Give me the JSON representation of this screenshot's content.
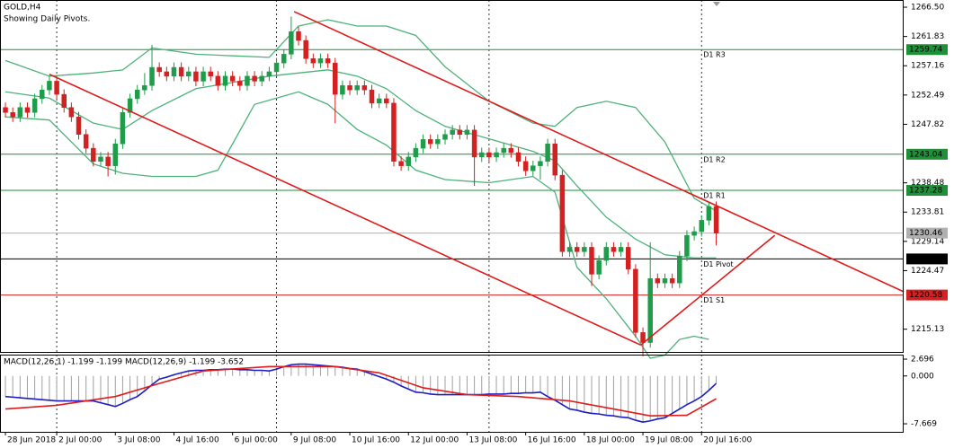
{
  "chart_data": {
    "type": "candlestick",
    "title": "GOLD,H4",
    "subtitle": "Showing Daily Pivots.",
    "up_color": "#1f9c4a",
    "down_color": "#d42020",
    "xlim": [
      -0.74,
      122.58
    ],
    "ylim": [
      1211.5,
      1267.65
    ],
    "yticks": [
      {
        "value": 1266.5,
        "label": "1266.50"
      },
      1261.83,
      1257.16,
      1252.49,
      1247.82,
      1238.48,
      1233.81,
      1229.14,
      1224.47,
      1215.13
    ],
    "xticks": [
      {
        "value": 0,
        "label": "28 Jun 2018"
      },
      {
        "value": 7,
        "label": "2 Jul 00:00"
      },
      {
        "value": 15,
        "label": "3 Jul 08:00"
      },
      {
        "value": 23,
        "label": "4 Jul 16:00"
      },
      {
        "value": 31,
        "label": "6 Jul 00:00"
      },
      {
        "value": 39,
        "label": "9 Jul 08:00"
      },
      {
        "value": 47,
        "label": "10 Jul 16:00"
      },
      {
        "value": 55,
        "label": "12 Jul 00:00"
      },
      {
        "value": 63,
        "label": "13 Jul 08:00"
      },
      {
        "value": 71,
        "label": "16 Jul 16:00"
      },
      {
        "value": 79,
        "label": "18 Jul 00:00"
      },
      {
        "value": 87,
        "label": "19 Jul 08:00"
      },
      {
        "value": 95,
        "label": "20 Jul 16:00"
      }
    ],
    "vgrid": [
      7,
      37,
      66,
      95
    ],
    "candles": {
      "open": [
        1250.5,
        1249.7,
        1249.0,
        1250.5,
        1249.7,
        1251.9,
        1253.3,
        1254.7,
        1252.6,
        1250.5,
        1249.0,
        1246.2,
        1244.0,
        1241.9,
        1242.6,
        1241.2,
        1244.7,
        1249.7,
        1251.9,
        1253.3,
        1254.0,
        1256.9,
        1256.2,
        1255.5,
        1256.9,
        1255.5,
        1256.2,
        1254.7,
        1256.2,
        1255.5,
        1254.0,
        1255.5,
        1254.7,
        1254.0,
        1255.5,
        1254.7,
        1255.5,
        1256.2,
        1257.6,
        1259.0,
        1262.6,
        1261.2,
        1258.3,
        1257.6,
        1258.3,
        1257.6,
        1252.6,
        1254.0,
        1253.3,
        1254.0,
        1253.3,
        1251.2,
        1251.9,
        1251.2,
        1241.9,
        1241.2,
        1242.6,
        1244.0,
        1245.4,
        1244.7,
        1245.4,
        1246.2,
        1246.9,
        1246.2,
        1246.9,
        1242.6,
        1243.3,
        1242.6,
        1243.3,
        1244.0,
        1243.3,
        1241.9,
        1240.4,
        1241.2,
        1241.9,
        1244.7,
        1239.7,
        1227.5,
        1228.2,
        1227.5,
        1228.2,
        1223.9,
        1226.1,
        1228.2,
        1227.5,
        1228.2,
        1224.7,
        1214.6,
        1213.0,
        1223.2,
        1222.5,
        1223.2,
        1222.5,
        1226.8,
        1230.1,
        1230.7,
        1232.5,
        1234.7
      ],
      "high": [
        1251.3,
        1250.5,
        1251.3,
        1251.3,
        1252.7,
        1254.1,
        1255.5,
        1255.5,
        1253.4,
        1251.3,
        1249.8,
        1247.0,
        1244.8,
        1243.4,
        1243.4,
        1245.5,
        1250.5,
        1252.7,
        1254.1,
        1256.0,
        1260.5,
        1257.7,
        1257.0,
        1257.7,
        1257.7,
        1257.0,
        1257.0,
        1257.0,
        1257.0,
        1256.3,
        1256.3,
        1256.3,
        1255.5,
        1256.3,
        1256.3,
        1256.3,
        1257.0,
        1258.4,
        1259.8,
        1265.0,
        1263.4,
        1262.0,
        1259.1,
        1259.1,
        1259.1,
        1258.4,
        1254.8,
        1254.8,
        1254.8,
        1254.8,
        1254.1,
        1252.7,
        1252.7,
        1252.0,
        1242.7,
        1243.4,
        1244.8,
        1246.2,
        1246.2,
        1246.2,
        1247.0,
        1247.7,
        1247.7,
        1247.7,
        1247.7,
        1244.1,
        1244.1,
        1244.1,
        1244.8,
        1244.8,
        1244.1,
        1242.7,
        1242.0,
        1242.7,
        1245.5,
        1245.5,
        1240.5,
        1229.0,
        1229.0,
        1229.0,
        1229.0,
        1226.9,
        1229.0,
        1229.0,
        1229.0,
        1229.0,
        1225.5,
        1215.4,
        1229.0,
        1224.0,
        1224.0,
        1224.0,
        1227.6,
        1230.9,
        1231.5,
        1233.3,
        1235.4,
        1235.5
      ],
      "low": [
        1248.9,
        1248.2,
        1248.2,
        1248.9,
        1248.9,
        1251.1,
        1252.5,
        1251.8,
        1249.7,
        1248.2,
        1245.4,
        1243.2,
        1241.1,
        1241.1,
        1239.5,
        1239.8,
        1243.9,
        1248.9,
        1251.1,
        1252.5,
        1253.2,
        1255.4,
        1254.7,
        1254.7,
        1254.7,
        1254.7,
        1253.9,
        1253.9,
        1254.7,
        1253.2,
        1253.2,
        1253.9,
        1253.2,
        1253.2,
        1253.9,
        1253.9,
        1254.7,
        1255.4,
        1256.8,
        1258.2,
        1260.4,
        1257.5,
        1256.8,
        1256.8,
        1256.8,
        1248.0,
        1251.8,
        1252.5,
        1252.5,
        1252.5,
        1250.4,
        1250.4,
        1250.4,
        1241.1,
        1240.4,
        1240.4,
        1241.8,
        1243.2,
        1243.9,
        1243.9,
        1244.6,
        1245.4,
        1245.4,
        1245.4,
        1238.0,
        1241.8,
        1241.8,
        1241.8,
        1242.5,
        1242.5,
        1241.1,
        1239.6,
        1239.6,
        1239.0,
        1241.1,
        1238.9,
        1226.7,
        1226.7,
        1226.7,
        1226.7,
        1222.0,
        1223.1,
        1225.3,
        1226.7,
        1226.7,
        1223.9,
        1213.8,
        1210.8,
        1212.2,
        1221.7,
        1221.7,
        1221.7,
        1221.7,
        1226.0,
        1229.3,
        1229.9,
        1231.7,
        1228.5
      ],
      "close": [
        1249.7,
        1249.0,
        1250.5,
        1249.7,
        1251.9,
        1253.3,
        1254.7,
        1252.6,
        1250.5,
        1249.0,
        1246.2,
        1244.0,
        1241.9,
        1242.6,
        1241.2,
        1244.7,
        1249.7,
        1251.9,
        1253.3,
        1254.0,
        1256.9,
        1256.2,
        1255.5,
        1256.9,
        1255.5,
        1256.2,
        1254.7,
        1256.2,
        1255.5,
        1254.0,
        1255.5,
        1254.7,
        1254.0,
        1255.5,
        1254.7,
        1255.5,
        1256.2,
        1257.6,
        1259.0,
        1262.6,
        1261.2,
        1258.3,
        1257.6,
        1258.3,
        1257.6,
        1252.6,
        1254.0,
        1253.3,
        1254.0,
        1253.3,
        1251.2,
        1251.9,
        1251.2,
        1241.9,
        1241.2,
        1242.6,
        1244.0,
        1245.4,
        1244.7,
        1245.4,
        1246.2,
        1246.9,
        1246.2,
        1246.9,
        1242.6,
        1243.3,
        1242.6,
        1243.3,
        1244.0,
        1243.3,
        1241.9,
        1240.4,
        1241.2,
        1241.9,
        1244.7,
        1239.7,
        1227.5,
        1228.2,
        1227.5,
        1228.2,
        1223.9,
        1226.1,
        1228.2,
        1227.5,
        1228.2,
        1224.7,
        1214.6,
        1213.0,
        1223.2,
        1222.5,
        1223.2,
        1222.5,
        1226.8,
        1230.1,
        1230.7,
        1232.5,
        1234.7,
        1230.46
      ]
    },
    "band_color": "#4cb27a",
    "bands": [
      {
        "x": [
          0,
          6,
          12,
          16,
          20,
          26,
          36,
          40,
          44,
          48,
          52,
          56,
          60,
          66,
          72,
          75,
          78,
          82,
          86,
          90,
          94,
          97
        ],
        "values": [
          1258.0,
          1255.5,
          1256.0,
          1256.5,
          1260.0,
          1259.0,
          1258.5,
          1263.5,
          1264.5,
          1263.5,
          1263.5,
          1262.0,
          1257.0,
          1251.5,
          1248.0,
          1247.5,
          1250.5,
          1251.5,
          1250.5,
          1245.0,
          1236.0,
          1234.0
        ]
      },
      {
        "x": [
          0,
          6,
          12,
          16,
          20,
          26,
          36,
          40,
          44,
          48,
          52,
          56,
          60,
          66,
          72,
          75,
          78,
          82,
          86,
          90,
          94,
          97
        ],
        "values": [
          1253.0,
          1252.0,
          1248.0,
          1247.0,
          1250.0,
          1253.5,
          1255.5,
          1256.0,
          1256.5,
          1255.5,
          1253.5,
          1250.0,
          1247.5,
          1245.5,
          1243.5,
          1242.0,
          1238.0,
          1233.0,
          1229.5,
          1227.0,
          1226.5,
          1226.5
        ]
      },
      {
        "x": [
          0,
          6,
          12,
          16,
          20,
          26,
          29,
          34,
          40,
          44,
          48,
          52,
          56,
          60,
          66,
          72,
          75,
          78,
          82,
          86,
          88,
          90,
          92,
          94,
          96
        ],
        "values": [
          1249.0,
          1248.5,
          1241.5,
          1240.0,
          1239.5,
          1239.5,
          1240.5,
          1251.0,
          1253.0,
          1251.0,
          1247.0,
          1244.5,
          1240.5,
          1239.0,
          1238.5,
          1239.5,
          1237.0,
          1225.0,
          1220.0,
          1214.0,
          1210.5,
          1211.0,
          1213.5,
          1214.0,
          1213.5
        ]
      }
    ],
    "trend_color": "#e01b1b",
    "trendlines": [
      {
        "x": [
          39.4,
          122.6
        ],
        "values": [
          1265.8,
          1221.1
        ]
      },
      {
        "x": [
          6,
          86.7
        ],
        "values": [
          1255.8,
          1212.6
        ]
      },
      {
        "x": [
          86.7,
          105
        ],
        "values": [
          1212.6,
          1230.1
        ]
      }
    ],
    "pivots": [
      {
        "label": "D1 R3",
        "value": 1259.74,
        "color": "#1f8f3a"
      },
      {
        "label": "D1 R2",
        "value": 1243.04,
        "color": "#1f8f3a"
      },
      {
        "label": "D1 R1",
        "value": 1237.28,
        "color": "#1f8f3a"
      },
      {
        "label": "D1 Pivot",
        "value": 1226.34,
        "color": "#000000"
      },
      {
        "label": "D1 S1",
        "value": 1220.58,
        "color": "#d42020"
      }
    ],
    "current_price": {
      "value": 1230.46,
      "color": "#b0b0b0"
    },
    "macd": {
      "label": "MACD(12,26,1) -1.199 -1.199 MACD(12,26,9) -1.199 -3.652",
      "ylim": [
        -8.96,
        3.42
      ],
      "yticks": [
        2.696,
        {
          "value": 0,
          "label": "0.000"
        },
        -7.669
      ],
      "main_color": "#1c1cc8",
      "hist_color": "#a0a0a0",
      "main": [
        -3.3,
        -3.4,
        -3.5,
        -3.6,
        -3.7,
        -3.8,
        -3.9,
        -4.0,
        -4.0,
        -4.0,
        -4.0,
        -4.0,
        -4.0,
        -4.3,
        -4.6,
        -4.9,
        -4.4,
        -3.8,
        -3.3,
        -2.4,
        -1.4,
        -0.5,
        -0.2,
        0.2,
        0.5,
        0.8,
        0.9,
        0.9,
        1.0,
        1.0,
        1.1,
        1.1,
        1.0,
        1.0,
        0.9,
        0.9,
        0.8,
        1.1,
        1.5,
        1.8,
        1.9,
        1.9,
        1.8,
        1.7,
        1.6,
        1.5,
        1.4,
        1.2,
        1.1,
        0.7,
        0.3,
        -0.1,
        -0.5,
        -1.0,
        -1.6,
        -2.1,
        -2.6,
        -2.7,
        -2.9,
        -3.0,
        -3.0,
        -3.0,
        -3.0,
        -3.0,
        -3.0,
        -3.0,
        -2.9,
        -2.9,
        -2.9,
        -2.8,
        -2.8,
        -2.7,
        -2.7,
        -2.6,
        -3.3,
        -3.9,
        -4.6,
        -5.3,
        -5.5,
        -5.8,
        -6.0,
        -6.1,
        -6.3,
        -6.4,
        -6.6,
        -6.7,
        -7.1,
        -7.4,
        -7.2,
        -6.9,
        -6.7,
        -6.0,
        -5.3,
        -4.6,
        -4.0,
        -3.3,
        -2.3,
        -1.199
      ],
      "signal": {
        "color": "#e01b1b",
        "x": [
          0,
          7,
          15,
          21,
          27,
          36,
          45,
          51,
          57,
          63,
          70,
          77,
          83,
          88,
          93,
          97
        ],
        "values": [
          -5.3,
          -4.7,
          -3.3,
          -1.2,
          0.8,
          1.5,
          1.5,
          0.5,
          -1.9,
          -3.0,
          -3.3,
          -4.0,
          -5.3,
          -6.4,
          -6.3,
          -3.652
        ]
      }
    }
  }
}
